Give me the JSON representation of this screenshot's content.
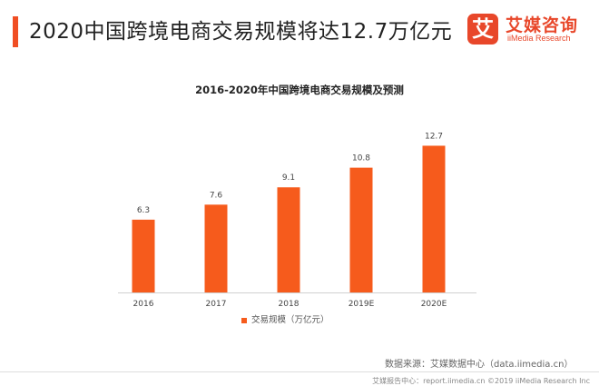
{
  "header": {
    "title": "2020中国跨境电商交易规模将达12.7万亿元"
  },
  "logo": {
    "mark": "艾",
    "name_cn": "艾媒咨询",
    "name_en": "iiMedia Research"
  },
  "chart_data": {
    "type": "bar",
    "title": "2016-2020年中国跨境电商交易规模及预测",
    "categories": [
      "2016",
      "2017",
      "2018",
      "2019E",
      "2020E"
    ],
    "series": [
      {
        "name": "交易规模（万亿元）",
        "values": [
          6.3,
          7.6,
          9.1,
          10.8,
          12.7
        ]
      }
    ],
    "data_labels": [
      "6.3",
      "7.6",
      "9.1",
      "10.8",
      "12.7"
    ],
    "ylim": [
      0,
      13
    ],
    "grid": false,
    "legend_position": "bottom",
    "bar_color": "#f65b1c"
  },
  "source": "数据来源：艾媒数据中心（data.iimedia.cn）",
  "footer": "艾媒报告中心：report.iimedia.cn ©2019 iiMedia Research Inc"
}
